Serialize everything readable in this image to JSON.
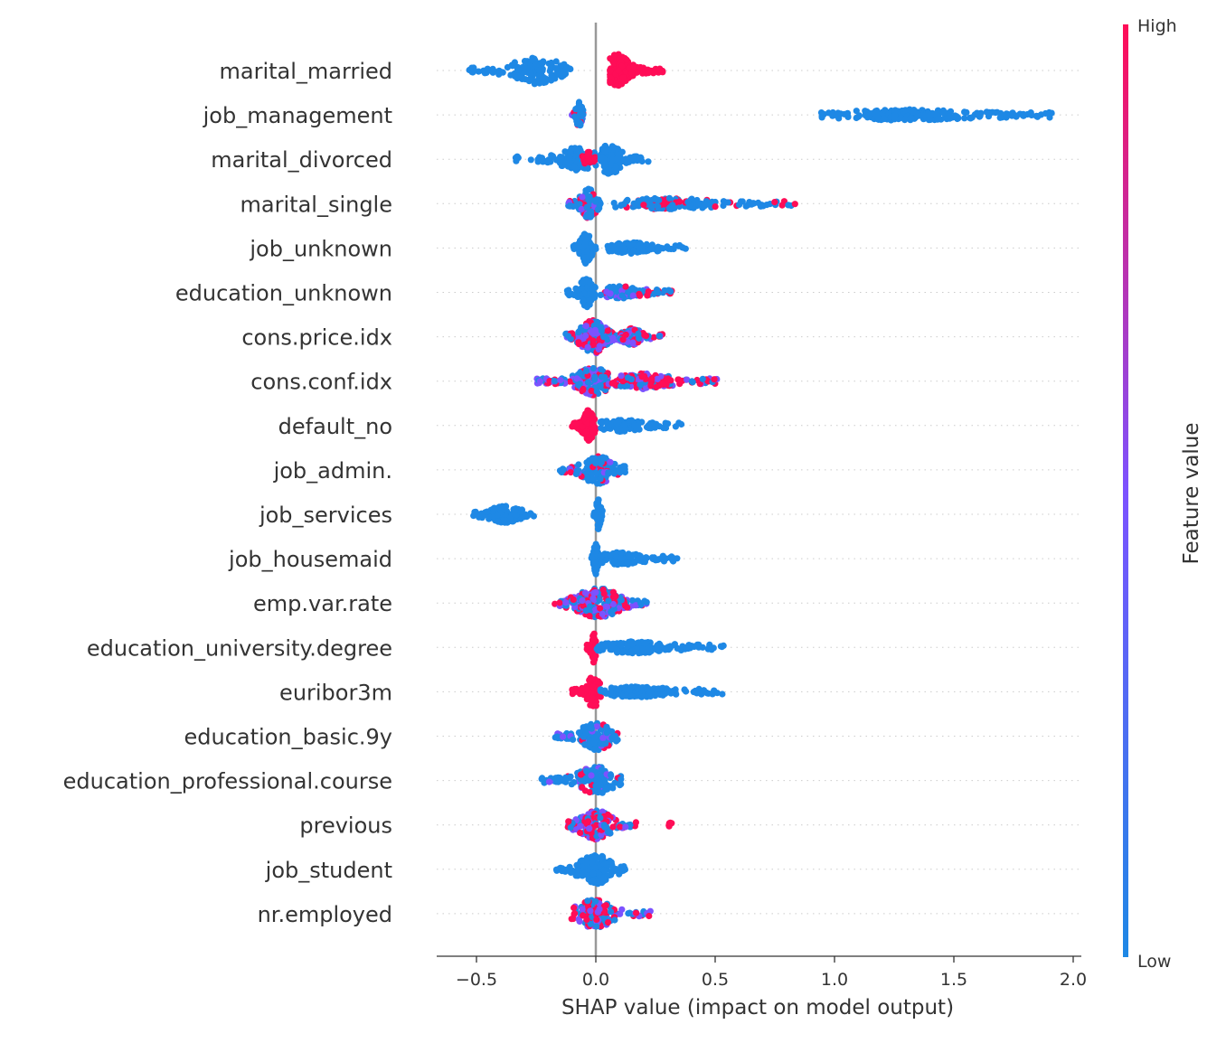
{
  "chart_data": {
    "type": "scatter",
    "subtype": "shap-beeswarm-summary",
    "xlabel": "SHAP value (impact on model output)",
    "xlim": [
      -0.67,
      2.04
    ],
    "xticks": [
      -0.5,
      0.0,
      0.5,
      1.0,
      1.5,
      2.0
    ],
    "xtick_labels": [
      "−0.5",
      "0.0",
      "0.5",
      "1.0",
      "1.5",
      "2.0"
    ],
    "colorbar": {
      "label": "Feature value",
      "high": "High",
      "low": "Low"
    },
    "colors": {
      "low": "#1E88E5",
      "high": "#FF0D57",
      "zero_line": "#999999",
      "text": "#333333"
    },
    "features": [
      {
        "name": "marital_married",
        "clusters": [
          {
            "lo": -0.54,
            "hi": -0.1,
            "center": -0.25,
            "width": 1.4,
            "n": 130,
            "color": "low"
          },
          {
            "lo": 0.06,
            "hi": 0.28,
            "center": 0.09,
            "width": 1.7,
            "n": 150,
            "color": "high"
          }
        ]
      },
      {
        "name": "job_management",
        "clusters": [
          {
            "lo": -0.1,
            "hi": -0.05,
            "center": -0.07,
            "width": 1.3,
            "n": 60,
            "color": "mixlow"
          },
          {
            "lo": 0.93,
            "hi": 1.92,
            "center": 1.3,
            "width": 0.35,
            "n": 220,
            "color": "low"
          }
        ]
      },
      {
        "name": "marital_divorced",
        "clusters": [
          {
            "lo": -0.34,
            "hi": 0.0,
            "center": -0.08,
            "width": 1.1,
            "n": 110,
            "color": "low"
          },
          {
            "lo": -0.06,
            "hi": 0.0,
            "center": -0.03,
            "width": 0.6,
            "n": 25,
            "color": "high"
          },
          {
            "lo": 0.02,
            "hi": 0.22,
            "center": 0.06,
            "width": 1.6,
            "n": 120,
            "color": "low"
          }
        ]
      },
      {
        "name": "marital_single",
        "clusters": [
          {
            "lo": -0.12,
            "hi": 0.02,
            "center": -0.03,
            "width": 1.5,
            "n": 100,
            "color": "mixlow"
          },
          {
            "lo": 0.07,
            "hi": 0.84,
            "center": 0.3,
            "width": 0.35,
            "n": 160,
            "color": "lowhigh"
          }
        ]
      },
      {
        "name": "job_unknown",
        "clusters": [
          {
            "lo": -0.1,
            "hi": 0.0,
            "center": -0.04,
            "width": 1.6,
            "n": 90,
            "color": "low"
          },
          {
            "lo": 0.05,
            "hi": 0.38,
            "center": 0.15,
            "width": 0.35,
            "n": 110,
            "color": "low"
          }
        ]
      },
      {
        "name": "education_unknown",
        "clusters": [
          {
            "lo": -0.12,
            "hi": 0.0,
            "center": -0.04,
            "width": 1.5,
            "n": 90,
            "color": "low"
          },
          {
            "lo": 0.02,
            "hi": 0.32,
            "center": 0.1,
            "width": 0.45,
            "n": 100,
            "color": "mixlow"
          }
        ]
      },
      {
        "name": "cons.price.idx",
        "clusters": [
          {
            "lo": -0.13,
            "hi": 0.1,
            "center": -0.01,
            "width": 1.8,
            "n": 220,
            "color": "mix"
          },
          {
            "lo": 0.1,
            "hi": 0.28,
            "center": 0.15,
            "width": 0.7,
            "n": 90,
            "color": "mix"
          }
        ]
      },
      {
        "name": "cons.conf.idx",
        "clusters": [
          {
            "lo": -0.25,
            "hi": 0.05,
            "center": -0.01,
            "width": 1.4,
            "n": 180,
            "color": "mix"
          },
          {
            "lo": 0.05,
            "hi": 0.51,
            "center": 0.2,
            "width": 0.65,
            "n": 170,
            "color": "highmix"
          }
        ]
      },
      {
        "name": "default_no",
        "clusters": [
          {
            "lo": -0.1,
            "hi": 0.0,
            "center": -0.03,
            "width": 1.6,
            "n": 100,
            "color": "high"
          },
          {
            "lo": 0.02,
            "hi": 0.37,
            "center": 0.1,
            "width": 0.45,
            "n": 100,
            "color": "low"
          }
        ]
      },
      {
        "name": "job_admin.",
        "clusters": [
          {
            "lo": -0.15,
            "hi": 0.13,
            "center": 0.01,
            "width": 1.4,
            "n": 150,
            "color": "lowmix"
          }
        ]
      },
      {
        "name": "job_services",
        "clusters": [
          {
            "lo": -0.52,
            "hi": -0.26,
            "center": -0.38,
            "width": 0.7,
            "n": 110,
            "color": "low"
          },
          {
            "lo": -0.01,
            "hi": 0.03,
            "center": 0.01,
            "width": 1.5,
            "n": 50,
            "color": "low"
          }
        ]
      },
      {
        "name": "job_housemaid",
        "clusters": [
          {
            "lo": -0.02,
            "hi": 0.02,
            "center": 0.0,
            "width": 1.6,
            "n": 60,
            "color": "low"
          },
          {
            "lo": 0.02,
            "hi": 0.35,
            "center": 0.1,
            "width": 0.45,
            "n": 100,
            "color": "low"
          }
        ]
      },
      {
        "name": "emp.var.rate",
        "clusters": [
          {
            "lo": -0.18,
            "hi": 0.22,
            "center": 0.01,
            "width": 1.5,
            "n": 220,
            "color": "mix"
          }
        ]
      },
      {
        "name": "education_university.degree",
        "clusters": [
          {
            "lo": -0.04,
            "hi": 0.0,
            "center": -0.01,
            "width": 1.6,
            "n": 60,
            "color": "high"
          },
          {
            "lo": 0.0,
            "hi": 0.54,
            "center": 0.15,
            "width": 0.4,
            "n": 170,
            "color": "low"
          }
        ]
      },
      {
        "name": "euribor3m",
        "clusters": [
          {
            "lo": -0.1,
            "hi": 0.02,
            "center": -0.01,
            "width": 1.6,
            "n": 90,
            "color": "high"
          },
          {
            "lo": 0.02,
            "hi": 0.54,
            "center": 0.15,
            "width": 0.35,
            "n": 160,
            "color": "low"
          }
        ]
      },
      {
        "name": "education_basic.9y",
        "clusters": [
          {
            "lo": -0.17,
            "hi": 0.1,
            "center": 0.0,
            "width": 1.5,
            "n": 140,
            "color": "lowmix"
          }
        ]
      },
      {
        "name": "education_professional.course",
        "clusters": [
          {
            "lo": -0.23,
            "hi": 0.11,
            "center": 0.0,
            "width": 1.4,
            "n": 150,
            "color": "lowmix"
          }
        ]
      },
      {
        "name": "previous",
        "clusters": [
          {
            "lo": -0.12,
            "hi": 0.17,
            "center": 0.0,
            "width": 1.5,
            "n": 140,
            "color": "mix"
          },
          {
            "lo": 0.3,
            "hi": 0.32,
            "center": 0.31,
            "width": 0.3,
            "n": 6,
            "color": "high"
          }
        ]
      },
      {
        "name": "job_student",
        "clusters": [
          {
            "lo": -0.17,
            "hi": 0.13,
            "center": 0.0,
            "width": 1.5,
            "n": 140,
            "color": "low"
          }
        ]
      },
      {
        "name": "nr.employed",
        "clusters": [
          {
            "lo": -0.11,
            "hi": 0.23,
            "center": 0.0,
            "width": 1.5,
            "n": 130,
            "color": "mix"
          }
        ]
      }
    ]
  }
}
